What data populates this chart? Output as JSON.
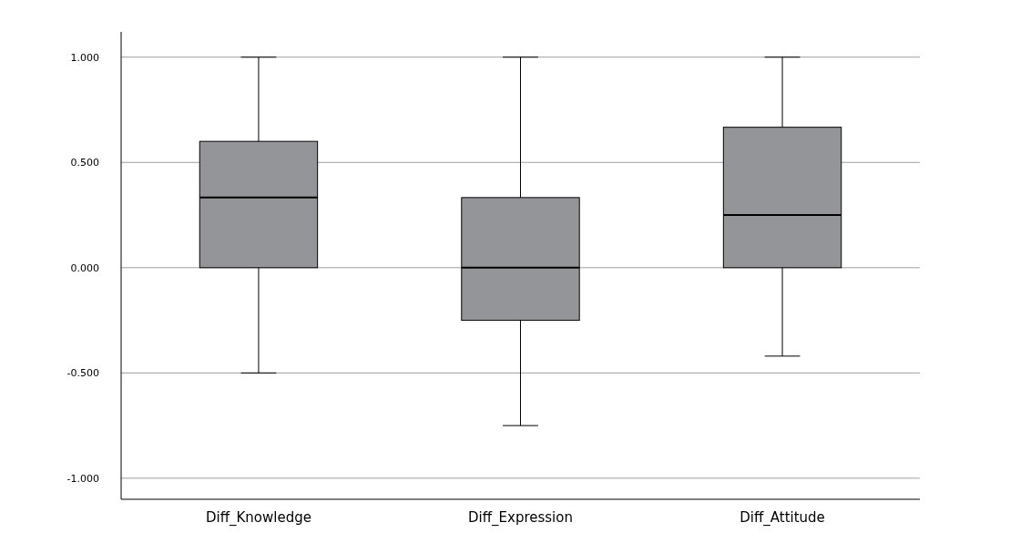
{
  "chart_data": {
    "type": "box",
    "categories": [
      "Diff_Knowledge",
      "Diff_Expression",
      "Diff_Attitude"
    ],
    "boxes": [
      {
        "low": -0.5,
        "q1": 0,
        "median": 0.333,
        "q3": 0.6,
        "high": 1
      },
      {
        "low": -0.75,
        "q1": -0.25,
        "median": 0,
        "q3": 0.333,
        "high": 1
      },
      {
        "low": -0.42,
        "q1": 0,
        "median": 0.25,
        "q3": 0.667,
        "high": 1
      }
    ],
    "color": "#939598",
    "ylim": [
      -1.1,
      1.12
    ],
    "yticks": [
      {
        "value": -1,
        "label": "-1.000"
      },
      {
        "value": -0.5,
        "label": "-0.500"
      },
      {
        "value": 0,
        "label": "0.000"
      },
      {
        "value": 0.5,
        "label": "0.500"
      },
      {
        "value": 1,
        "label": "1.000"
      }
    ],
    "grid": "y"
  }
}
